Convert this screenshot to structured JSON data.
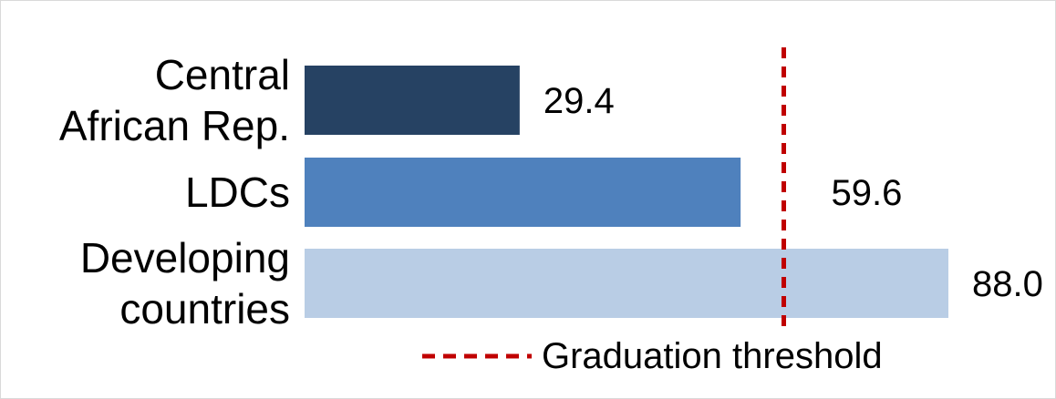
{
  "chart_data": {
    "type": "bar",
    "orientation": "horizontal",
    "categories": [
      [
        "Central",
        "African Rep."
      ],
      [
        "LDCs"
      ],
      [
        "Developing",
        "countries"
      ]
    ],
    "values": [
      29.4,
      59.6,
      88.0
    ],
    "value_labels": [
      "29.4",
      "59.6",
      "88.0"
    ],
    "bar_colors": [
      "#264263",
      "#4f81bd",
      "#b9cde5"
    ],
    "xlim": [
      0,
      88.0
    ],
    "grid": false,
    "reference_line": {
      "value": 65.5,
      "style": "dashed",
      "color": "#c00000",
      "label": "Graduation threshold"
    },
    "legend": {
      "position": "bottom-right",
      "entries": [
        "Graduation threshold"
      ]
    }
  }
}
